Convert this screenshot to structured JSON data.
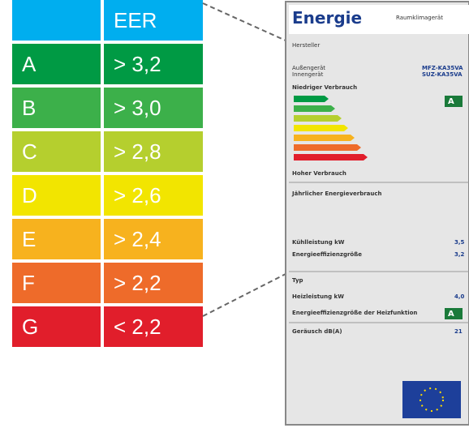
{
  "table": {
    "header": "EER",
    "rows": [
      [
        "A",
        "> 3,2"
      ],
      [
        "B",
        "> 3,0"
      ],
      [
        "C",
        "> 2,8"
      ],
      [
        "D",
        "> 2,6"
      ],
      [
        "E",
        "> 2,4"
      ],
      [
        "F",
        "> 2,2"
      ],
      [
        "G",
        "< 2,2"
      ]
    ]
  },
  "label": {
    "title": "Energie",
    "product": "Raumklimagerät",
    "manufacturer": "Hersteller",
    "outdoor": "Außengerät",
    "indoor": "Innengerät",
    "model_outdoor": "MFZ-KA35VA",
    "model_indoor": "SUZ-KA35VA",
    "low": "Niedriger Verbrauch",
    "high": "Hoher Verbrauch",
    "class_cool": "A",
    "class_heat": "A",
    "consumption": "Jährlicher Energieverbrauch",
    "cooling": "Kühlleistung kW",
    "cooling_value": "3,5",
    "eer": "Energieeffizienzgröße",
    "eer_value": "3,2",
    "type": "Typ",
    "heating": "Heizleistung kW",
    "heating_value": "4,0",
    "cop": "Energieeffizienzgröße der Heizfunktion",
    "noise": "Geräusch dB(A)",
    "noise_value": "21"
  }
}
